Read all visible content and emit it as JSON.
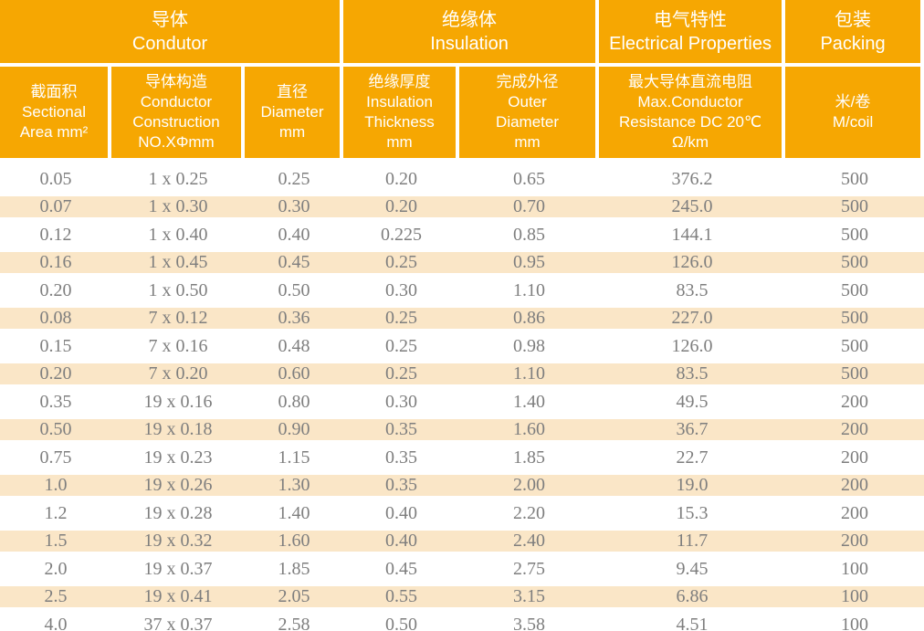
{
  "colors": {
    "header_bg": "#F6A702",
    "stripe_bg": "#FAE6C7",
    "header_text": "#FFFFFF",
    "data_text": "#7E7E7E"
  },
  "table": {
    "groups": [
      {
        "key": "conductor",
        "zh": "导体",
        "en": "Condutor",
        "span": 3
      },
      {
        "key": "insulation",
        "zh": "绝缘体",
        "en": "Insulation",
        "span": 2
      },
      {
        "key": "electrical-properties",
        "zh": "电气特性",
        "en": "Electrical Properties",
        "span": 1
      },
      {
        "key": "packing",
        "zh": "包装",
        "en": "Packing",
        "span": 1
      }
    ],
    "columns": [
      {
        "key": "sectional-area",
        "lines": [
          "截面积",
          "Sectional",
          "Area mm²"
        ]
      },
      {
        "key": "conductor-construction",
        "lines": [
          "导体构造",
          "Conductor",
          "Construction",
          "NO.XΦmm"
        ]
      },
      {
        "key": "diameter",
        "lines": [
          "直径",
          "Diameter",
          "mm"
        ]
      },
      {
        "key": "insulation-thickness",
        "lines": [
          "绝缘厚度",
          "Insulation",
          "Thickness",
          "mm"
        ]
      },
      {
        "key": "outer-diameter",
        "lines": [
          "完成外径",
          "Outer",
          "Diameter",
          "mm"
        ]
      },
      {
        "key": "max-resistance",
        "lines": [
          "最大导体直流电阻",
          "Max.Conductor",
          "Resistance DC 20℃",
          "Ω/km"
        ]
      },
      {
        "key": "m-per-coil",
        "lines": [
          "米/卷",
          "M/coil"
        ]
      }
    ],
    "rows": [
      [
        "0.05",
        "1 x 0.25",
        "0.25",
        "0.20",
        "0.65",
        "376.2",
        "500"
      ],
      [
        "0.07",
        "1 x 0.30",
        "0.30",
        "0.20",
        "0.70",
        "245.0",
        "500"
      ],
      [
        "0.12",
        "1 x 0.40",
        "0.40",
        "0.225",
        "0.85",
        "144.1",
        "500"
      ],
      [
        "0.16",
        "1 x 0.45",
        "0.45",
        "0.25",
        "0.95",
        "126.0",
        "500"
      ],
      [
        "0.20",
        "1 x 0.50",
        "0.50",
        "0.30",
        "1.10",
        "83.5",
        "500"
      ],
      [
        "0.08",
        "7 x 0.12",
        "0.36",
        "0.25",
        "0.86",
        "227.0",
        "500"
      ],
      [
        "0.15",
        "7 x 0.16",
        "0.48",
        "0.25",
        "0.98",
        "126.0",
        "500"
      ],
      [
        "0.20",
        "7 x 0.20",
        "0.60",
        "0.25",
        "1.10",
        "83.5",
        "500"
      ],
      [
        "0.35",
        "19 x 0.16",
        "0.80",
        "0.30",
        "1.40",
        "49.5",
        "200"
      ],
      [
        "0.50",
        "19 x 0.18",
        "0.90",
        "0.35",
        "1.60",
        "36.7",
        "200"
      ],
      [
        "0.75",
        "19 x 0.23",
        "1.15",
        "0.35",
        "1.85",
        "22.7",
        "200"
      ],
      [
        "1.0",
        "19 x 0.26",
        "1.30",
        "0.35",
        "2.00",
        "19.0",
        "200"
      ],
      [
        "1.2",
        "19 x 0.28",
        "1.40",
        "0.40",
        "2.20",
        "15.3",
        "200"
      ],
      [
        "1.5",
        "19 x 0.32",
        "1.60",
        "0.40",
        "2.40",
        "11.7",
        "200"
      ],
      [
        "2.0",
        "19 x 0.37",
        "1.85",
        "0.45",
        "2.75",
        "9.45",
        "100"
      ],
      [
        "2.5",
        "19 x 0.41",
        "2.05",
        "0.55",
        "3.15",
        "6.86",
        "100"
      ],
      [
        "4.0",
        "37 x 0.37",
        "2.58",
        "0.50",
        "3.58",
        "4.51",
        "100"
      ]
    ]
  }
}
